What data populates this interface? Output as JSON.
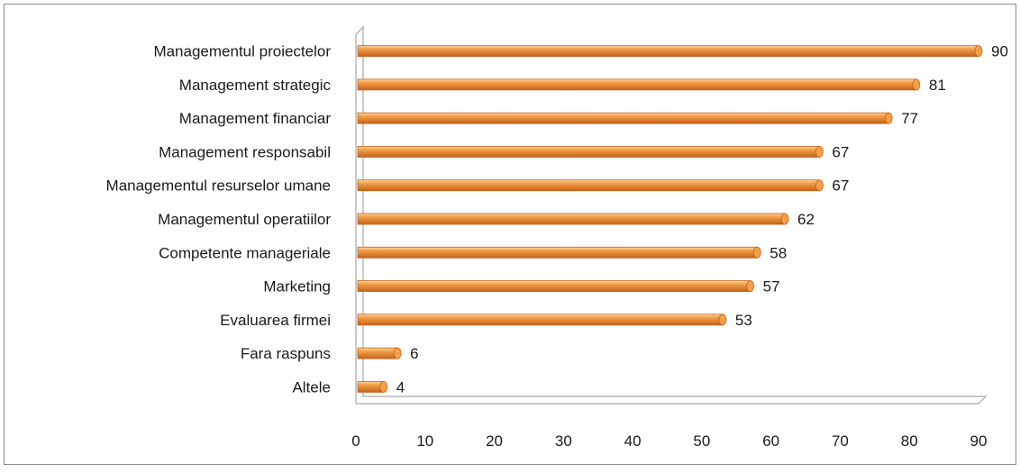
{
  "chart_data": {
    "type": "bar",
    "orientation": "horizontal",
    "title": "",
    "xlabel": "",
    "ylabel": "",
    "categories": [
      "Managementul proiectelor",
      "Management strategic",
      "Management financiar",
      "Management responsabil",
      "Managementul resurselor umane",
      "Managementul operatiilor",
      "Competente manageriale",
      "Marketing",
      "Evaluarea firmei",
      "Fara raspuns",
      "Altele"
    ],
    "values": [
      90,
      81,
      77,
      67,
      67,
      62,
      58,
      57,
      53,
      6,
      4
    ],
    "xlim": [
      0,
      90
    ],
    "xticks": [
      0,
      10,
      20,
      30,
      40,
      50,
      60,
      70,
      80,
      90
    ],
    "grid": false,
    "legend": "none",
    "bar_color": "#f4a04a",
    "bar_color_dark": "#c5621b",
    "bar_color_light": "#fbd6a4",
    "axis_color": "#a6a6a6",
    "border_color": "#8c8c8c"
  }
}
